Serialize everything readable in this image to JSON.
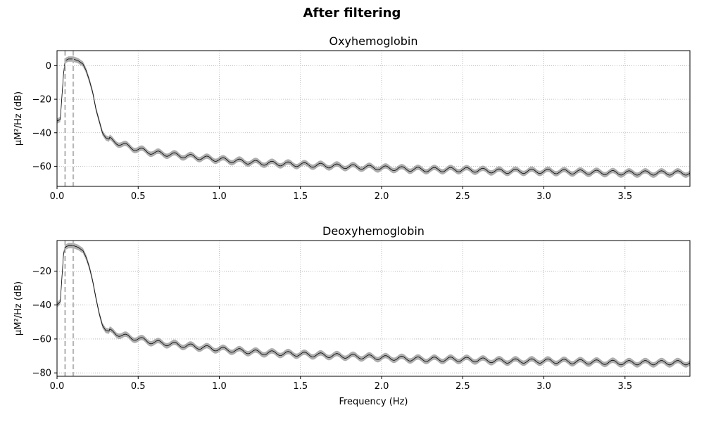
{
  "figure": {
    "title": "After filtering"
  },
  "chart_data": [
    {
      "type": "line",
      "title": "Oxyhemoglobin",
      "xlabel": "",
      "ylabel": "µM²/Hz (dB)",
      "xlim": [
        0.0,
        3.9
      ],
      "ylim": [
        -72,
        9
      ],
      "xticks": [
        0.0,
        0.5,
        1.0,
        1.5,
        2.0,
        2.5,
        3.0,
        3.5
      ],
      "xtick_labels": [
        "0.0",
        "0.5",
        "1.0",
        "1.5",
        "2.0",
        "2.5",
        "3.0",
        "3.5"
      ],
      "yticks": [
        0,
        -20,
        -40,
        -60
      ],
      "ytick_labels": [
        "0",
        "−20",
        "−40",
        "−60"
      ],
      "grid": true,
      "vlines": [
        0.05,
        0.1
      ],
      "series": [
        {
          "x": [
            0.0,
            0.02,
            0.04,
            0.05,
            0.07,
            0.1,
            0.13,
            0.16,
            0.18,
            0.2,
            0.22,
            0.24,
            0.26,
            0.28,
            0.3,
            0.35,
            0.4,
            0.5,
            0.6,
            0.7,
            0.8,
            0.9,
            1.0,
            1.25,
            1.5,
            1.75,
            2.0,
            2.25,
            2.5,
            2.75,
            3.0,
            3.25,
            3.5,
            3.75,
            3.9
          ],
          "y": [
            -33,
            -32,
            -5,
            3,
            4,
            4,
            3,
            1,
            -3,
            -9,
            -16,
            -26,
            -33,
            -40,
            -43,
            -45,
            -47,
            -50,
            -52,
            -53,
            -54,
            -55,
            -56,
            -58,
            -59,
            -60,
            -61,
            -62,
            -62,
            -63,
            -63,
            -63.5,
            -64,
            -64,
            -64
          ],
          "band_halfwidth": 1.6,
          "color": "#000000",
          "band_color": "#a0a0a0"
        }
      ]
    },
    {
      "type": "line",
      "title": "Deoxyhemoglobin",
      "xlabel": "Frequency (Hz)",
      "ylabel": "µM²/Hz (dB)",
      "xlim": [
        0.0,
        3.9
      ],
      "ylim": [
        -82,
        -2
      ],
      "xticks": [
        0.0,
        0.5,
        1.0,
        1.5,
        2.0,
        2.5,
        3.0,
        3.5
      ],
      "xtick_labels": [
        "0.0",
        "0.5",
        "1.0",
        "1.5",
        "2.0",
        "2.5",
        "3.0",
        "3.5"
      ],
      "yticks": [
        -20,
        -40,
        -60,
        -80
      ],
      "ytick_labels": [
        "−20",
        "−40",
        "−60",
        "−80"
      ],
      "grid": true,
      "vlines": [
        0.05,
        0.1
      ],
      "series": [
        {
          "x": [
            0.0,
            0.02,
            0.04,
            0.05,
            0.07,
            0.1,
            0.13,
            0.16,
            0.18,
            0.2,
            0.22,
            0.24,
            0.26,
            0.28,
            0.3,
            0.35,
            0.4,
            0.5,
            0.6,
            0.7,
            0.8,
            0.9,
            1.0,
            1.25,
            1.5,
            1.75,
            2.0,
            2.25,
            2.5,
            2.75,
            3.0,
            3.25,
            3.5,
            3.75,
            3.9
          ],
          "y": [
            -40,
            -38,
            -10,
            -6,
            -5,
            -5,
            -6,
            -8,
            -12,
            -18,
            -26,
            -36,
            -45,
            -52,
            -55,
            -56,
            -58,
            -60,
            -62,
            -63,
            -64,
            -65,
            -66,
            -68,
            -69,
            -70,
            -71,
            -72,
            -72,
            -73,
            -73,
            -73.5,
            -74,
            -74,
            -74
          ],
          "band_halfwidth": 1.6,
          "color": "#000000",
          "band_color": "#a0a0a0"
        }
      ]
    }
  ]
}
